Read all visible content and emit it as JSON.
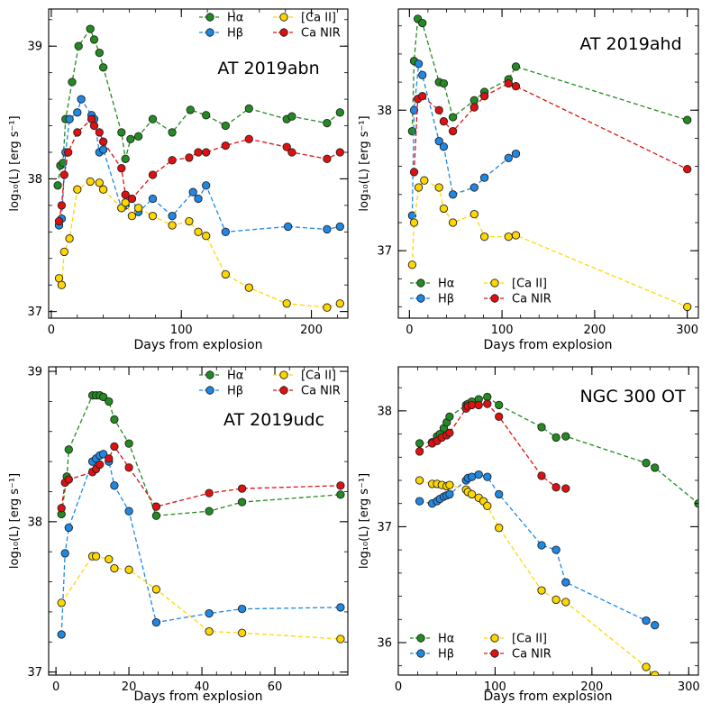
{
  "colors": {
    "halpha": "#228b22",
    "hbeta": "#1e88e5",
    "ca2": "#ffd700",
    "canir": "#e01010"
  },
  "legend_labels": {
    "halpha": "Hα",
    "hbeta": "Hβ",
    "ca2": "[Ca II]",
    "canir": "Ca NIR"
  },
  "xlabel": "Days from explosion",
  "ylabel": "log₁₀(L) [erg s⁻¹]",
  "chart_data": [
    {
      "type": "line",
      "title": "AT 2019abn",
      "legend_position": "top-right",
      "xlabel": "Days from explosion",
      "ylabel": "log₁₀(L) [erg s⁻¹]",
      "xlim": [
        -2,
        228
      ],
      "ylim": [
        36.95,
        39.28
      ],
      "xticks": [
        0,
        100,
        200
      ],
      "yticks": [
        37,
        38,
        39
      ],
      "series": [
        {
          "key": "halpha",
          "name": "Hα",
          "x": [
            5,
            7,
            9,
            11,
            16,
            21,
            30,
            33,
            37,
            40,
            54,
            57,
            61,
            67,
            78,
            93,
            107,
            119,
            134,
            152,
            181,
            185,
            212,
            222
          ],
          "y": [
            37.95,
            38.1,
            38.12,
            38.45,
            38.73,
            39.0,
            39.13,
            39.05,
            38.95,
            38.84,
            38.35,
            38.15,
            38.3,
            38.32,
            38.45,
            38.35,
            38.52,
            38.48,
            38.4,
            38.53,
            38.45,
            38.47,
            38.42,
            38.5
          ]
        },
        {
          "key": "hbeta",
          "name": "Hβ",
          "x": [
            6,
            8,
            11,
            14,
            20,
            23,
            31,
            33,
            37,
            40,
            54,
            57,
            62,
            67,
            78,
            93,
            109,
            113,
            119,
            134,
            182,
            212,
            222
          ],
          "y": [
            37.65,
            37.7,
            38.2,
            38.45,
            38.5,
            38.6,
            38.48,
            38.45,
            38.2,
            38.22,
            37.78,
            37.8,
            37.85,
            37.75,
            37.85,
            37.72,
            37.9,
            37.85,
            37.95,
            37.6,
            37.64,
            37.62,
            37.64
          ]
        },
        {
          "key": "ca2",
          "name": "[Ca II]",
          "x": [
            6,
            8,
            10,
            14,
            20,
            30,
            37,
            40,
            54,
            57,
            62,
            67,
            78,
            93,
            106,
            113,
            119,
            134,
            152,
            181,
            212,
            222
          ],
          "y": [
            37.25,
            37.2,
            37.45,
            37.55,
            37.92,
            37.98,
            37.97,
            37.92,
            37.78,
            37.82,
            37.72,
            37.78,
            37.72,
            37.65,
            37.68,
            37.6,
            37.57,
            37.28,
            37.18,
            37.06,
            37.03,
            37.06
          ]
        },
        {
          "key": "canir",
          "name": "Ca NIR",
          "x": [
            6,
            8,
            10,
            13,
            20,
            31,
            33,
            37,
            40,
            54,
            57,
            62,
            78,
            93,
            106,
            113,
            119,
            134,
            152,
            181,
            185,
            212,
            222
          ],
          "y": [
            37.68,
            37.8,
            38.03,
            38.2,
            38.35,
            38.45,
            38.4,
            38.35,
            38.28,
            38.08,
            37.88,
            37.85,
            38.03,
            38.14,
            38.16,
            38.2,
            38.2,
            38.25,
            38.3,
            38.24,
            38.2,
            38.15,
            38.2
          ]
        }
      ]
    },
    {
      "type": "line",
      "title": "AT 2019ahd",
      "legend_position": "bottom-left",
      "xlabel": "Days from explosion",
      "ylabel": "log₁₀(L) [erg s⁻¹]",
      "xlim": [
        -12,
        312
      ],
      "ylim": [
        36.52,
        38.72
      ],
      "xticks": [
        0,
        100,
        200,
        300
      ],
      "yticks": [
        37,
        38
      ],
      "series": [
        {
          "key": "halpha",
          "name": "Hα",
          "x": [
            3,
            5,
            9,
            14,
            32,
            37,
            47,
            70,
            81,
            107,
            115,
            300
          ],
          "y": [
            37.85,
            38.35,
            38.65,
            38.62,
            38.2,
            38.19,
            37.95,
            38.07,
            38.13,
            38.22,
            38.31,
            37.93
          ]
        },
        {
          "key": "hbeta",
          "name": "Hβ",
          "x": [
            3,
            5,
            10,
            14,
            32,
            37,
            47,
            70,
            81,
            107,
            115
          ],
          "y": [
            37.25,
            38.0,
            38.33,
            38.25,
            37.78,
            37.74,
            37.4,
            37.45,
            37.52,
            37.66,
            37.69
          ]
        },
        {
          "key": "ca2",
          "name": "[Ca II]",
          "x": [
            3,
            5,
            10,
            16,
            32,
            37,
            47,
            70,
            81,
            107,
            115,
            300
          ],
          "y": [
            36.9,
            37.2,
            37.45,
            37.5,
            37.45,
            37.3,
            37.2,
            37.26,
            37.1,
            37.1,
            37.11,
            36.6
          ]
        },
        {
          "key": "canir",
          "name": "Ca NIR",
          "x": [
            5,
            9,
            14,
            32,
            37,
            47,
            70,
            81,
            107,
            115,
            300
          ],
          "y": [
            37.56,
            38.08,
            38.1,
            38.0,
            37.92,
            37.85,
            38.02,
            38.1,
            38.19,
            38.17,
            37.58
          ]
        }
      ]
    },
    {
      "type": "line",
      "title": "AT 2019udc",
      "legend_position": "top-right",
      "xlabel": "Days from explosion",
      "ylabel": "log₁₀(L) [erg s⁻¹]",
      "xlim": [
        -2,
        80
      ],
      "ylim": [
        36.98,
        39.03
      ],
      "xticks": [
        0,
        20,
        40,
        60
      ],
      "yticks": [
        37,
        38,
        39
      ],
      "series": [
        {
          "key": "halpha",
          "name": "Hα",
          "x": [
            1.5,
            3,
            3.5,
            10,
            11,
            12,
            13,
            14.5,
            16,
            20,
            27.5,
            42,
            51,
            78
          ],
          "y": [
            38.05,
            38.3,
            38.48,
            38.84,
            38.84,
            38.84,
            38.83,
            38.8,
            38.68,
            38.52,
            38.04,
            38.07,
            38.13,
            38.18
          ]
        },
        {
          "key": "hbeta",
          "name": "Hβ",
          "x": [
            1.5,
            2.5,
            3.5,
            10,
            11,
            12,
            13,
            14.5,
            16,
            20,
            27.5,
            42,
            51,
            78
          ],
          "y": [
            37.25,
            37.79,
            37.96,
            38.4,
            38.42,
            38.44,
            38.45,
            38.4,
            38.24,
            38.07,
            37.33,
            37.39,
            37.42,
            37.43
          ]
        },
        {
          "key": "ca2",
          "name": "[Ca II]",
          "x": [
            1.5,
            10,
            11,
            14.5,
            16,
            20,
            27.5,
            42,
            51,
            78
          ],
          "y": [
            37.46,
            37.77,
            37.77,
            37.75,
            37.69,
            37.68,
            37.55,
            37.27,
            37.26,
            37.22
          ]
        },
        {
          "key": "canir",
          "name": "Ca NIR",
          "x": [
            1.5,
            2.5,
            3.5,
            10,
            11,
            12,
            14.5,
            16,
            20,
            27.5,
            42,
            51,
            78
          ],
          "y": [
            38.09,
            38.26,
            38.28,
            38.33,
            38.35,
            38.38,
            38.42,
            38.5,
            38.36,
            38.1,
            38.19,
            38.22,
            38.24
          ]
        }
      ]
    },
    {
      "type": "line",
      "title": "NGC 300 OT",
      "legend_position": "bottom-left",
      "xlabel": "Days from explosion",
      "ylabel": "log₁₀(L) [erg s⁻¹]",
      "xlim": [
        0,
        310
      ],
      "ylim": [
        35.72,
        38.38
      ],
      "xticks": [
        0,
        100,
        200,
        300
      ],
      "yticks": [
        36,
        37,
        38
      ],
      "series": [
        {
          "key": "halpha",
          "name": "Hα",
          "x": [
            22,
            35,
            40,
            43,
            47,
            50,
            53,
            70,
            72,
            76,
            83,
            92,
            104,
            148,
            163,
            173,
            256,
            265,
            310
          ],
          "y": [
            37.72,
            37.73,
            37.78,
            37.8,
            37.85,
            37.9,
            37.95,
            38.05,
            38.06,
            38.08,
            38.1,
            38.12,
            38.05,
            37.86,
            37.77,
            37.78,
            37.55,
            37.51,
            37.2
          ]
        },
        {
          "key": "hbeta",
          "name": "Hβ",
          "x": [
            22,
            35,
            40,
            43,
            47,
            50,
            53,
            70,
            72,
            76,
            83,
            92,
            104,
            148,
            163,
            173,
            256,
            265
          ],
          "y": [
            37.22,
            37.2,
            37.22,
            37.24,
            37.26,
            37.27,
            37.28,
            37.4,
            37.42,
            37.43,
            37.45,
            37.43,
            37.28,
            36.84,
            36.8,
            36.52,
            36.19,
            36.15
          ]
        },
        {
          "key": "ca2",
          "name": "[Ca II]",
          "x": [
            22,
            35,
            40,
            45,
            50,
            53,
            70,
            72,
            76,
            83,
            88,
            92,
            104,
            148,
            163,
            173,
            256,
            265
          ],
          "y": [
            37.4,
            37.37,
            37.37,
            37.36,
            37.35,
            37.36,
            37.32,
            37.3,
            37.28,
            37.25,
            37.22,
            37.18,
            36.99,
            36.45,
            36.37,
            36.35,
            35.79,
            35.72
          ]
        },
        {
          "key": "canir",
          "name": "Ca NIR",
          "x": [
            22,
            35,
            40,
            45,
            50,
            53,
            70,
            72,
            76,
            83,
            92,
            104,
            148,
            163,
            173
          ],
          "y": [
            37.65,
            37.72,
            37.74,
            37.77,
            37.79,
            37.81,
            38.02,
            38.04,
            38.05,
            38.05,
            38.06,
            37.95,
            37.44,
            37.34,
            37.33
          ]
        }
      ]
    }
  ]
}
